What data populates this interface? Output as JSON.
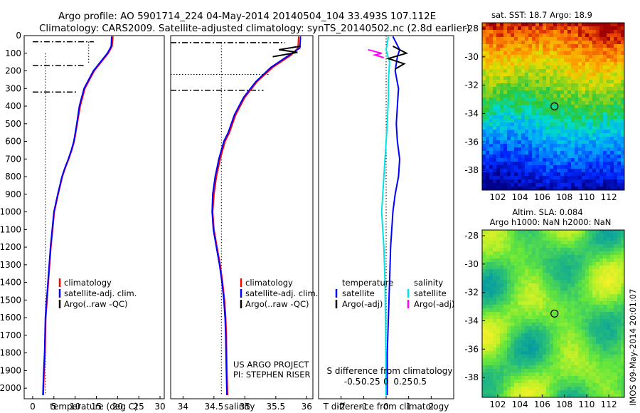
{
  "header": {
    "line1": "Argo profile: AO 5901714_224 04-May-2014 20140504_104 33.493S 107.112E",
    "line2": "Climatology: CARS2009. Satellite-adjusted climatology: synTS_20140502.nc (2.8d earlier)"
  },
  "colors": {
    "climatology": "#ff0000",
    "satellite": "#0000ff",
    "argo": "#000000",
    "sat_salinity": "#00e5e5",
    "argo_salinity_diff": "#ff00ff"
  },
  "chart_data": [
    {
      "id": "temperature",
      "type": "line",
      "xlabel": "temperature (deg C)",
      "xlim": [
        -2,
        31
      ],
      "xticks": [
        0,
        5,
        10,
        15,
        20,
        25,
        30
      ],
      "ylim": [
        0,
        2060
      ],
      "yticks": [
        0,
        100,
        200,
        300,
        400,
        500,
        600,
        700,
        800,
        900,
        1000,
        1100,
        1200,
        1300,
        1400,
        1500,
        1600,
        1700,
        1800,
        1900,
        2000
      ],
      "ydir": "down",
      "legend": [
        "climatology",
        "satellite-adj. clim.",
        "Argo(..raw -QC)"
      ],
      "series": [
        {
          "name": "climatology",
          "x": [
            18.9,
            18.7,
            17.8,
            14.5,
            12.3,
            11.2,
            10.5,
            9.8,
            9.2,
            8.5,
            7.7,
            7.0,
            6.0,
            5.1,
            4.7,
            4.3,
            4.0,
            3.7,
            3.4,
            3.1,
            2.9,
            2.7,
            2.5
          ],
          "y": [
            5,
            60,
            100,
            200,
            300,
            400,
            500,
            600,
            650,
            700,
            750,
            800,
            900,
            1000,
            1100,
            1200,
            1300,
            1400,
            1500,
            1600,
            1800,
            1900,
            2040
          ]
        },
        {
          "name": "satellite-adj. clim.",
          "x": [
            18.6,
            18.5,
            17.6,
            14.3,
            12.1,
            11.0,
            10.4,
            9.7,
            9.1,
            8.4,
            7.6,
            6.9,
            5.9,
            5.0,
            4.6,
            4.2,
            3.9,
            3.6,
            3.3,
            3.0,
            2.8,
            2.6,
            2.4
          ],
          "y": [
            5,
            60,
            100,
            200,
            300,
            400,
            500,
            600,
            650,
            700,
            750,
            800,
            900,
            1000,
            1100,
            1200,
            1300,
            1400,
            1500,
            1600,
            1800,
            1900,
            2040
          ]
        }
      ],
      "dashdot_levels": [
        [
          0,
          14.4,
          35
        ],
        [
          0,
          12.0,
          170
        ],
        [
          0,
          10.3,
          320
        ]
      ],
      "dotted_verticals": [
        [
          3.0,
          100,
          2040
        ],
        [
          13.2,
          35,
          160
        ]
      ]
    },
    {
      "id": "salinity",
      "type": "line",
      "xlabel": "salinity",
      "xlim": [
        33.8,
        36.1
      ],
      "xticks": [
        34,
        34.5,
        35,
        35.5,
        36
      ],
      "ylim": [
        0,
        2060
      ],
      "ydir": "down",
      "legend": [
        "climatology",
        "satellite-adj. clim.",
        "Argo(..raw -QC)"
      ],
      "series": [
        {
          "name": "climatology",
          "x": [
            35.87,
            35.86,
            35.75,
            35.45,
            35.2,
            35.0,
            34.85,
            34.75,
            34.68,
            34.6,
            34.54,
            34.5,
            34.48,
            34.5,
            34.55,
            34.6,
            34.64,
            34.67,
            34.69,
            34.7,
            34.71,
            34.72
          ],
          "y": [
            5,
            70,
            110,
            180,
            260,
            350,
            450,
            550,
            600,
            700,
            800,
            900,
            1000,
            1100,
            1200,
            1300,
            1400,
            1500,
            1600,
            1700,
            1900,
            2040
          ]
        },
        {
          "name": "satellite-adj. clim.",
          "x": [
            35.9,
            35.89,
            35.72,
            35.42,
            35.18,
            34.98,
            34.83,
            34.73,
            34.66,
            34.58,
            34.52,
            34.48,
            34.47,
            34.49,
            34.54,
            34.59,
            34.63,
            34.66,
            34.68,
            34.69,
            34.7,
            34.71
          ],
          "y": [
            5,
            70,
            110,
            180,
            260,
            350,
            450,
            550,
            600,
            700,
            800,
            900,
            1000,
            1100,
            1200,
            1300,
            1400,
            1500,
            1600,
            1700,
            1900,
            2040
          ]
        },
        {
          "name": "Argo(..raw -QC)",
          "x": [
            35.45,
            35.85,
            35.55,
            35.9
          ],
          "y": [
            120,
            95,
            80,
            60
          ]
        }
      ],
      "dashdot_levels": [
        [
          33.8,
          35.65,
          40
        ],
        [
          33.8,
          35.3,
          310
        ]
      ],
      "dotted_levels": [
        [
          33.8,
          35.4,
          220
        ]
      ],
      "dotted_verticals": [
        [
          34.62,
          40,
          2040
        ]
      ],
      "annotation": [
        "US ARGO PROJECT",
        "PI: STEPHEN RISER"
      ]
    },
    {
      "id": "difference",
      "type": "line",
      "xlabel_top": "S difference from climatology",
      "xticks_top": [
        "-0.5",
        "-0.25",
        "0",
        "0.25",
        "0.5"
      ],
      "xlabel": "T difference from climatology",
      "xlim": [
        -3,
        3
      ],
      "xticks": [
        -2,
        -1,
        0,
        1,
        2
      ],
      "ylim": [
        0,
        2060
      ],
      "ydir": "down",
      "legend_left_title": "temperature",
      "legend_right_title": "salinity",
      "legend_left": [
        "satellite",
        "Argo(-adj)"
      ],
      "legend_right": [
        "satellite",
        "Argo(-adj)"
      ],
      "series": [
        {
          "name": "temperature satellite",
          "x": [
            0.3,
            0.6,
            0.5,
            0.4,
            0.55,
            0.5,
            0.45,
            0.5,
            0.6,
            0.55,
            0.4,
            0.3,
            0.2,
            0.15,
            0.1,
            0.05,
            0.05
          ],
          "y": [
            5,
            80,
            120,
            200,
            300,
            400,
            500,
            600,
            700,
            800,
            900,
            1000,
            1200,
            1400,
            1600,
            1800,
            2040
          ]
        },
        {
          "name": "salinity satellite",
          "x": [
            0.1,
            0.0,
            0.15,
            0.1,
            0.1,
            0.05,
            0.0,
            -0.05,
            -0.1,
            -0.15,
            -0.2,
            -0.1,
            -0.05,
            -0.03,
            -0.02,
            -0.01
          ],
          "y": [
            5,
            80,
            150,
            250,
            350,
            500,
            600,
            700,
            800,
            900,
            1000,
            1200,
            1400,
            1600,
            1800,
            2040
          ]
        },
        {
          "name": "temperature Argo(-adj)",
          "x": [
            0.3,
            0.9,
            0.1,
            0.8,
            0.4
          ],
          "y": [
            60,
            100,
            130,
            160,
            190
          ]
        },
        {
          "name": "salinity Argo(-adj)",
          "x": [
            -0.8,
            -0.2,
            -0.5,
            -0.1
          ],
          "y": [
            80,
            100,
            110,
            125
          ]
        }
      ]
    },
    {
      "id": "sst_map",
      "type": "heatmap",
      "title": "sat. SST: 18.7  Argo: 18.9",
      "xticks": [
        102,
        104,
        106,
        108,
        110,
        112
      ],
      "yticks": [
        -28,
        -30,
        -32,
        -34,
        -36,
        -38
      ],
      "xlim": [
        100.6,
        113.4
      ],
      "ylim": [
        -39.4,
        -27.6
      ],
      "marker": [
        107.112,
        -33.493
      ]
    },
    {
      "id": "sla_map",
      "type": "heatmap",
      "title": "Altim. SLA: 0.084",
      "subtitle": "Argo h1000: NaN  h2000: NaN",
      "xticks": [
        102,
        104,
        106,
        108,
        110,
        112
      ],
      "yticks": [
        -28,
        -30,
        -32,
        -34,
        -36,
        -38
      ],
      "xlim": [
        100.6,
        113.4
      ],
      "ylim": [
        -39.4,
        -27.6
      ],
      "marker": [
        107.112,
        -33.493
      ]
    }
  ],
  "side_stamp": "IMOS 09-May-2014 20:01:07"
}
